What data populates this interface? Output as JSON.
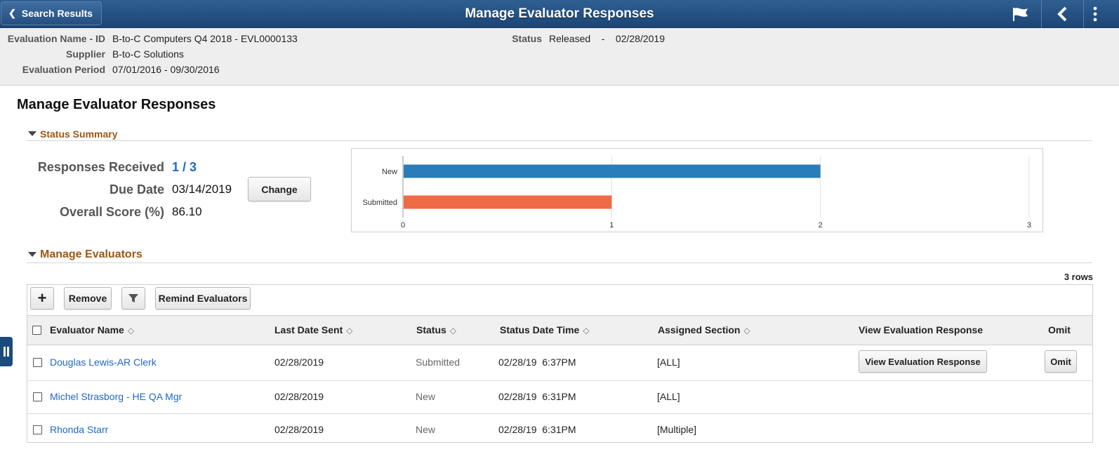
{
  "header": {
    "back_label": "Search Results",
    "title": "Manage Evaluator Responses"
  },
  "info": {
    "eval_name_label": "Evaluation Name - ID",
    "eval_name_value": "B-to-C Computers  Q4 2018 - EVL0000133",
    "supplier_label": "Supplier",
    "supplier_value": "B-to-C Solutions",
    "period_label": "Evaluation Period",
    "period_value": "07/01/2016 -  09/30/2016",
    "status_label": "Status",
    "status_value": "Released    -    02/28/2019"
  },
  "page_title": "Manage Evaluator Responses",
  "status_summary": {
    "section_label": "Status Summary",
    "responses_label": "Responses Received",
    "responses_value": "1 / 3",
    "due_label": "Due Date",
    "due_value": "03/14/2019",
    "score_label": "Overall Score (%)",
    "score_value": "86.10",
    "change_button": "Change"
  },
  "chart_data": {
    "type": "bar",
    "orientation": "horizontal",
    "categories": [
      "New",
      "Submitted"
    ],
    "values": [
      2,
      1
    ],
    "colors": [
      "#2a7db8",
      "#ef6a46"
    ],
    "xlim": [
      0,
      3
    ],
    "xticks": [
      "0",
      "1",
      "2",
      "3"
    ],
    "grid": true,
    "title": "",
    "xlabel": "",
    "ylabel": ""
  },
  "evaluators": {
    "section_label": "Manage Evaluators",
    "rows_count": "3 rows",
    "toolbar": {
      "add_label": "+",
      "remove_label": "Remove",
      "remind_label": "Remind Evaluators"
    },
    "columns": {
      "name": "Evaluator Name",
      "last_sent": "Last Date Sent",
      "status": "Status",
      "status_dt": "Status Date Time",
      "section": "Assigned Section",
      "view": "View Evaluation Response",
      "omit": "Omit"
    },
    "rows": [
      {
        "name": "Douglas Lewis-AR Clerk",
        "last_sent": "02/28/2019",
        "status": "Submitted",
        "status_dt": "02/28/19  6:37PM",
        "section": "[ALL]",
        "view_button": "View Evaluation Response",
        "omit_button": "Omit"
      },
      {
        "name": "Michel Strasborg - HE QA Mgr",
        "last_sent": "02/28/2019",
        "status": "New",
        "status_dt": "02/28/19  6:31PM",
        "section": "[ALL]"
      },
      {
        "name": "Rhonda Starr",
        "last_sent": "02/28/2019",
        "status": "New",
        "status_dt": "02/28/19  6:31PM",
        "section": "[Multiple]"
      }
    ]
  }
}
